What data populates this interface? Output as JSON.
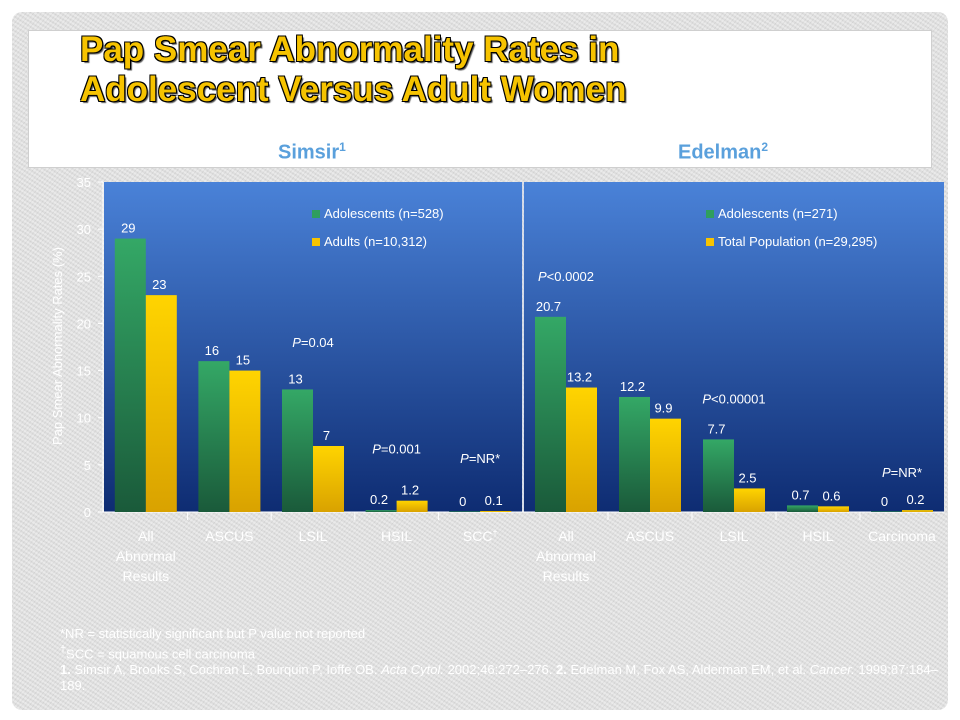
{
  "title": {
    "line1": "Pap Smear Abnormality Rates in",
    "line2": "Adolescent Versus Adult Women"
  },
  "studies": {
    "simsir": {
      "name": "Simsir",
      "sup": "1"
    },
    "edelman": {
      "name": "Edelman",
      "sup": "2"
    }
  },
  "chart_data": [
    {
      "type": "bar",
      "title": "Simsir",
      "ylabel": "Pap Smear Abnormality Rates (%)",
      "ylim": [
        0,
        35
      ],
      "yticks": [
        0,
        5,
        10,
        15,
        20,
        25,
        30,
        35
      ],
      "categories": [
        [
          "All",
          "Abnormal",
          "Results"
        ],
        [
          "ASCUS"
        ],
        [
          "LSIL"
        ],
        [
          "HSIL"
        ],
        [
          "SCC",
          "†"
        ]
      ],
      "series": [
        {
          "name": "Adolescents (n=528)",
          "values": [
            29,
            16,
            13,
            0.2,
            0
          ],
          "labels": [
            "29",
            "16",
            "13",
            "0.2",
            "0"
          ],
          "color": "#2f9e5f"
        },
        {
          "name": "Adults (n=10,312)",
          "values": [
            23,
            15,
            7,
            1.2,
            0.1
          ],
          "labels": [
            "23",
            "15",
            "7",
            "1.2",
            "0.1"
          ],
          "color": "#f8c400"
        }
      ],
      "annotations": [
        {
          "category": 2,
          "text": "=0.04",
          "level": 17.5
        },
        {
          "category": 3,
          "text": "=0.001",
          "level": 6.2
        },
        {
          "category": 4,
          "text": "=NR*",
          "level": 5.2
        }
      ],
      "legend": "top-right",
      "grid": false
    },
    {
      "type": "bar",
      "title": "Edelman",
      "ylim": [
        0,
        35
      ],
      "categories": [
        [
          "All",
          "Abnormal",
          "Results"
        ],
        [
          "ASCUS"
        ],
        [
          "LSIL"
        ],
        [
          "HSIL"
        ],
        [
          "Carcinoma"
        ]
      ],
      "series": [
        {
          "name": "Adolescents (n=271)",
          "values": [
            20.7,
            12.2,
            7.7,
            0.7,
            0
          ],
          "labels": [
            "20.7",
            "12.2",
            "7.7",
            "0.7",
            "0"
          ],
          "color": "#2f9e5f"
        },
        {
          "name": "Total Population (n=29,295)",
          "values": [
            13.2,
            9.9,
            2.5,
            0.6,
            0.2
          ],
          "labels": [
            "13.2",
            "9.9",
            "2.5",
            "0.6",
            "0.2"
          ],
          "color": "#f8c400"
        }
      ],
      "annotations": [
        {
          "category": 0,
          "text": "<0.0002",
          "level": 24.5
        },
        {
          "category": 2,
          "text": "<0.00001",
          "level": 11.5
        },
        {
          "category": 4,
          "text": "=NR*",
          "level": 3.7
        }
      ],
      "legend": "top-right",
      "grid": false
    }
  ],
  "footnotes": {
    "nr_note": "*NR = statistically significant but P value not reported",
    "scc_sup": "†",
    "scc_note": "SCC = squamous cell carcinoma",
    "ref1_num": "1.",
    "ref1_text": "Simsir A, Brooks S, Cochran L, Bourquin P, Ioffe OB.",
    "ref1_journal": "Acta Cytol.",
    "ref1_tail": "2002;46:272–276.",
    "ref2_num": "2.",
    "ref2_text": "Edelman M, Fox AS, Alderman EM, et al.",
    "ref2_journal": "Cancer.",
    "ref2_tail": "1999;87:184–189."
  },
  "colors": {
    "plot_top": "#4a82d8",
    "plot_bottom": "#0e2c72",
    "adolescents": "#2f9e5f",
    "adults": "#f8c400",
    "title": "#f6c300",
    "study_header": "#5aa0dc"
  }
}
